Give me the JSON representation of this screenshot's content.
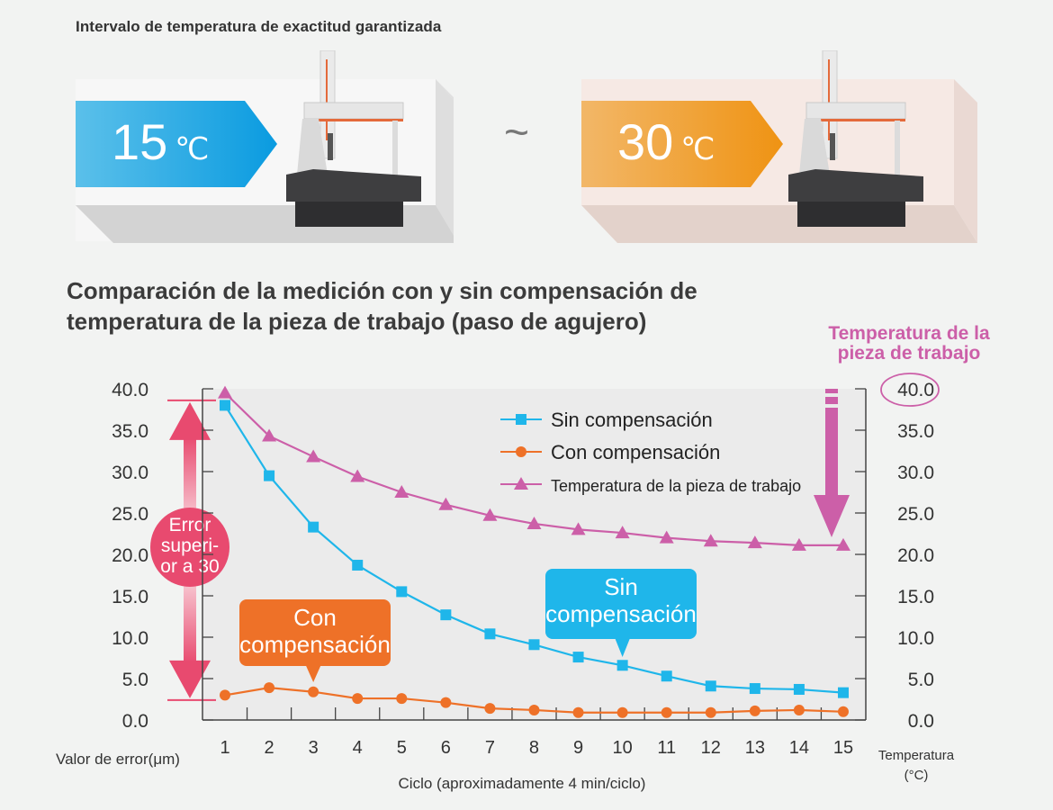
{
  "header": {
    "caption": "Intervalo de temperatura de exactitud garantizada",
    "low_temp": {
      "value": "15",
      "unit": "℃"
    },
    "tilde": "~",
    "high_temp": {
      "value": "30",
      "unit": "℃"
    }
  },
  "colors": {
    "sin": "#1fb6ea",
    "con": "#ee7128",
    "temp": "#cc5fa8",
    "error_band": "#e84a6f",
    "plot_bg": "#ebebeb"
  },
  "chart_data": {
    "type": "line",
    "title": "Comparación de la medición con y sin compensación de temperatura de la pieza de trabajo (paso de agujero)",
    "xlabel": "Ciclo (aproximadamente 4 min/ciclo)",
    "ylabel": "Valor de error(μm)",
    "y2label": "Temperatura (°C)",
    "y2title": "Temperatura de la pieza de trabajo",
    "x": [
      1,
      2,
      3,
      4,
      5,
      6,
      7,
      8,
      9,
      10,
      11,
      12,
      13,
      14,
      15
    ],
    "x_tick_labels": [
      "1",
      "2",
      "3",
      "4",
      "5",
      "6",
      "7",
      "8",
      "9",
      "10",
      "11",
      "12",
      "13",
      "14",
      "15"
    ],
    "ylim": [
      0,
      40
    ],
    "y2lim": [
      0,
      40
    ],
    "y_tick_labels": [
      "40.0",
      "35.0",
      "30.0",
      "25.0",
      "20.0",
      "15.0",
      "10.0",
      "5.0",
      "0.0"
    ],
    "y2_tick_labels": [
      "40.0",
      "35.0",
      "30.0",
      "25.0",
      "20.0",
      "15.0",
      "10.0",
      "5.0",
      "0.0"
    ],
    "grid": false,
    "legend_position": "top-right",
    "series": [
      {
        "name": "Sin compensación",
        "marker": "square",
        "axis": "left",
        "values": [
          38.0,
          29.5,
          23.3,
          18.7,
          15.5,
          12.7,
          10.4,
          9.1,
          7.6,
          6.6,
          5.3,
          4.1,
          3.8,
          3.7,
          3.3
        ]
      },
      {
        "name": "Con compensación",
        "marker": "circle",
        "axis": "left",
        "values": [
          3.0,
          3.9,
          3.4,
          2.6,
          2.6,
          2.1,
          1.4,
          1.2,
          0.9,
          0.9,
          0.9,
          0.9,
          1.1,
          1.2,
          1.0
        ]
      },
      {
        "name": "Temperatura de la pieza de trabajo",
        "marker": "triangle",
        "axis": "right",
        "values": [
          39.5,
          34.3,
          31.8,
          29.4,
          27.5,
          26.0,
          24.7,
          23.7,
          23.0,
          22.6,
          22.0,
          21.6,
          21.4,
          21.1,
          21.1
        ]
      }
    ],
    "annotations": {
      "error_band": {
        "lines": [
          "Error",
          "superi-",
          "or a 30"
        ],
        "from": 2.4,
        "to": 38.6
      },
      "con_callout": {
        "lines": [
          "Con",
          "compensación"
        ],
        "at_cycle": 3
      },
      "sin_callout": {
        "lines": [
          "Sin",
          "compensación"
        ],
        "at_cycle": 10
      },
      "highlighted_right_tick": "40.0"
    }
  }
}
